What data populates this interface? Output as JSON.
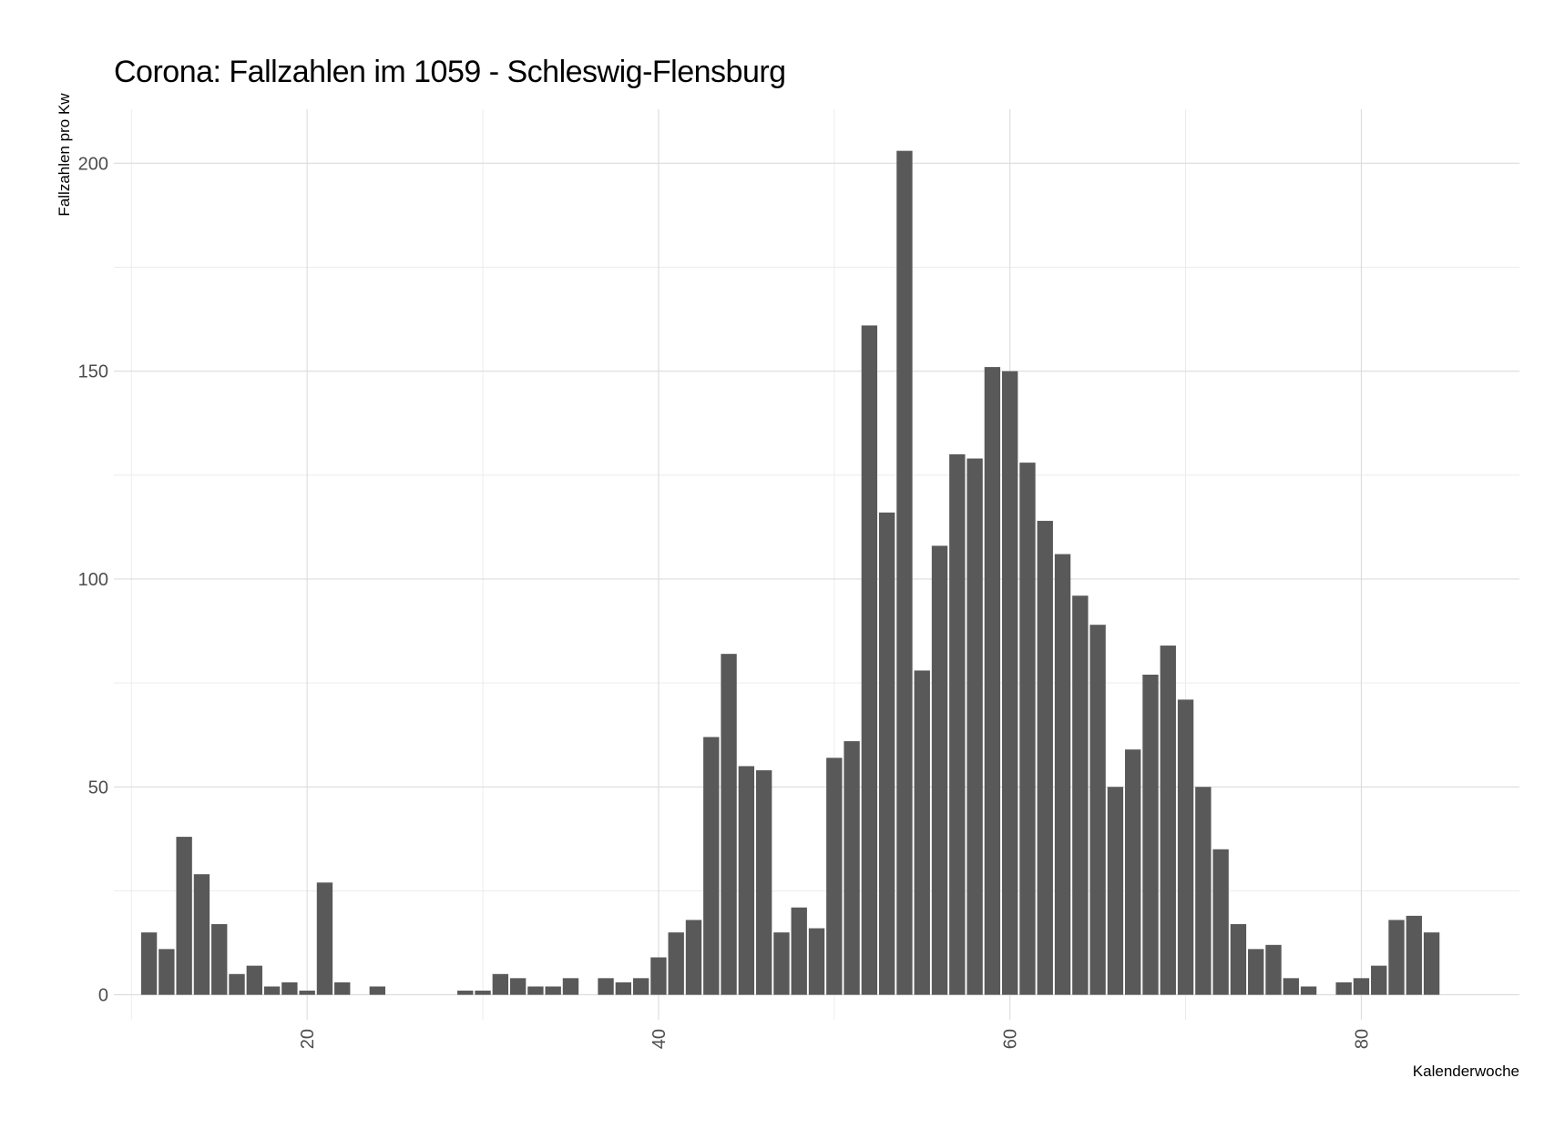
{
  "chart_data": {
    "type": "bar",
    "title": "Corona: Fallzahlen im 1059 - Schleswig-Flensburg",
    "xlabel": "Kalenderwoche",
    "ylabel": "Fallzahlen pro Kw",
    "xlim": [
      9,
      89
    ],
    "ylim": [
      -6,
      213
    ],
    "x_ticks": [
      20,
      40,
      60,
      80
    ],
    "y_ticks": [
      0,
      50,
      100,
      150,
      200
    ],
    "grid": true,
    "legend": "none",
    "bar_color": "#595959",
    "x": [
      11,
      12,
      13,
      14,
      15,
      16,
      17,
      18,
      19,
      20,
      21,
      22,
      24,
      29,
      30,
      31,
      32,
      33,
      34,
      35,
      37,
      38,
      39,
      40,
      41,
      42,
      43,
      44,
      45,
      46,
      47,
      48,
      49,
      50,
      51,
      52,
      53,
      54,
      55,
      56,
      57,
      58,
      59,
      60,
      61,
      62,
      63,
      64,
      65,
      66,
      67,
      68,
      69,
      70,
      71,
      72,
      73,
      74,
      75,
      76,
      77,
      79,
      80,
      81,
      82,
      83,
      84
    ],
    "values": [
      15,
      11,
      38,
      29,
      17,
      5,
      7,
      2,
      3,
      1,
      27,
      3,
      2,
      1,
      1,
      5,
      4,
      2,
      2,
      4,
      4,
      3,
      4,
      9,
      15,
      18,
      62,
      82,
      55,
      54,
      15,
      21,
      16,
      57,
      61,
      161,
      116,
      203,
      78,
      108,
      130,
      129,
      151,
      150,
      128,
      114,
      106,
      96,
      89,
      50,
      59,
      77,
      84,
      71,
      50,
      35,
      17,
      11,
      12,
      4,
      2,
      3,
      4,
      7,
      18,
      19,
      15
    ]
  }
}
